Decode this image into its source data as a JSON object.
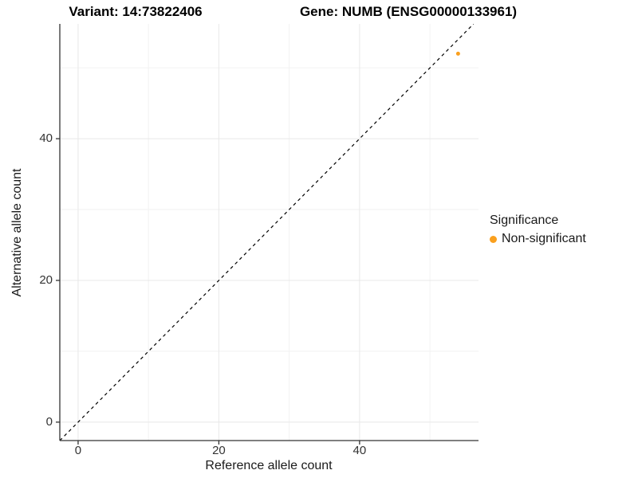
{
  "titles": {
    "variant": "Variant: 14:73822406",
    "gene": "Gene: NUMB (ENSG00000133961)"
  },
  "axes": {
    "x_label": "Reference allele count",
    "y_label": "Alternative allele count"
  },
  "legend": {
    "title": "Significance",
    "items": [
      {
        "label": "Non-significant",
        "color": "#FAA01E"
      }
    ]
  },
  "chart_data": {
    "type": "scatter",
    "title": "Variant: 14:73822406 — Gene: NUMB (ENSG00000133961)",
    "xlabel": "Reference allele count",
    "ylabel": "Alternative allele count",
    "xlim": [
      -2.6,
      56.9
    ],
    "ylim": [
      -2.6,
      56.2
    ],
    "x_ticks": [
      0,
      20,
      40
    ],
    "y_ticks": [
      0,
      20,
      40
    ],
    "x_minor_ticks": [
      10,
      30,
      50
    ],
    "y_minor_ticks": [
      10,
      30,
      50
    ],
    "grid": true,
    "legend_position": "right",
    "series": [
      {
        "name": "Non-significant",
        "points": [
          {
            "x": 54,
            "y": 52
          }
        ],
        "color": "#FAA01E",
        "radius": 2.5
      }
    ],
    "reference_line": {
      "type": "identity",
      "style": "dashed",
      "color": "#000000"
    },
    "colors": {
      "major_grid": "#E8E8E8",
      "minor_grid": "#F2F2F2",
      "axis_line": "#333333",
      "background": "#FFFFFF"
    }
  }
}
